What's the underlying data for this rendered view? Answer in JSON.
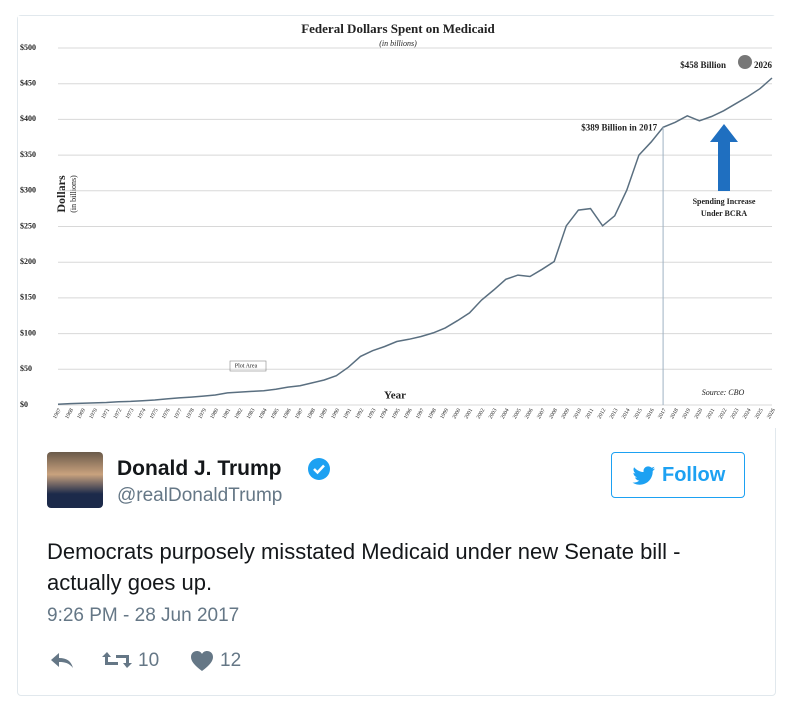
{
  "chart_data": {
    "type": "line",
    "title": "Federal Dollars Spent on Medicaid",
    "subtitle": "(in billions)",
    "y_label": "Dollars",
    "y_label_sub": "(in billions)",
    "x_label": "Year",
    "annotations": [
      "$389 Billion in 2017",
      "$458 Billion",
      "2026",
      "Spending Increase",
      "Under BCRA",
      "Source: CBO",
      "Plot Area"
    ],
    "categories": [
      "1967",
      "1968",
      "1969",
      "1970",
      "1971",
      "1972",
      "1973",
      "1974",
      "1975",
      "1976",
      "1977",
      "1978",
      "1979",
      "1980",
      "1981",
      "1982",
      "1983",
      "1984",
      "1985",
      "1986",
      "1987",
      "1988",
      "1989",
      "1990",
      "1991",
      "1992",
      "1993",
      "1994",
      "1995",
      "1996",
      "1997",
      "1998",
      "1999",
      "2000",
      "2001",
      "2002",
      "2003",
      "2004",
      "2005",
      "2006",
      "2007",
      "2008",
      "2009",
      "2010",
      "2011",
      "2012",
      "2013",
      "2014",
      "2015",
      "2016",
      "2017",
      "2018",
      "2019",
      "2020",
      "2021",
      "2022",
      "2023",
      "2024",
      "2025",
      "2026"
    ],
    "values": [
      1,
      2,
      2.5,
      3,
      3.5,
      4.5,
      5,
      6,
      7,
      8.5,
      10,
      11,
      12.5,
      14,
      17,
      18,
      19,
      20,
      22,
      25,
      27,
      31,
      35,
      41,
      53,
      68,
      76,
      82,
      89,
      92,
      96,
      101,
      108,
      118,
      129,
      147,
      161,
      176,
      182,
      180,
      190,
      201,
      251,
      273,
      275,
      251,
      265,
      301,
      350,
      368,
      389,
      396,
      405,
      398,
      404,
      412,
      422,
      432,
      443,
      458
    ],
    "color": "#5a6f80",
    "ylim": [
      0,
      500
    ],
    "yticks": [
      {
        "value": 0,
        "label": "$0"
      },
      {
        "value": 50,
        "label": "$50"
      },
      {
        "value": 100,
        "label": "$100"
      },
      {
        "value": 150,
        "label": "$150"
      },
      {
        "value": 200,
        "label": "$200"
      },
      {
        "value": 250,
        "label": "$250"
      },
      {
        "value": 300,
        "label": "$300"
      },
      {
        "value": 350,
        "label": "$350"
      },
      {
        "value": 400,
        "label": "$400"
      },
      {
        "value": 450,
        "label": "$450"
      },
      {
        "value": 500,
        "label": "$500"
      }
    ],
    "grid": true
  },
  "tweet": {
    "name": "Donald J. Trump",
    "handle": "@realDonaldTrump",
    "follow": "Follow",
    "text": "Democrats purposely misstated Medicaid under new Senate bill - actually goes up.",
    "timestamp": "9:26 PM - 28 Jun 2017",
    "retweets": "10",
    "likes": "12"
  }
}
